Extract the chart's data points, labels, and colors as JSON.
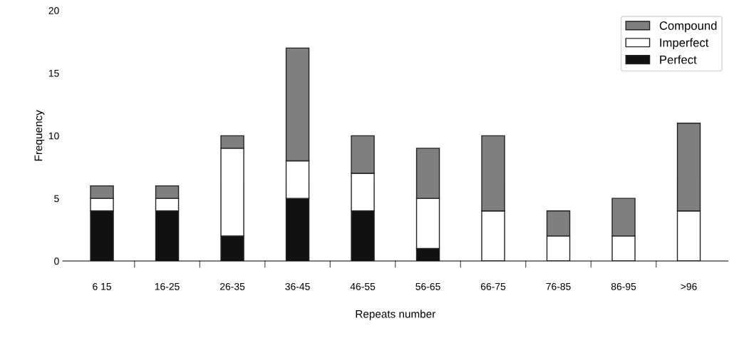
{
  "chart_data": {
    "type": "bar",
    "stacked": true,
    "xlabel": "Repeats number",
    "ylabel": "Frequency",
    "categories": [
      "6 15",
      "16-25",
      "26-35",
      "36-45",
      "46-55",
      "56-65",
      "66-75",
      "76-85",
      "86-95",
      ">96"
    ],
    "series": [
      {
        "name": "Perfect",
        "color": "#111111",
        "values": [
          4,
          4,
          2,
          5,
          4,
          1,
          0,
          0,
          0,
          0
        ]
      },
      {
        "name": "Imperfect",
        "color": "#ffffff",
        "values": [
          1,
          1,
          7,
          3,
          3,
          4,
          4,
          2,
          2,
          4
        ]
      },
      {
        "name": "Compound",
        "color": "#7f7f7f",
        "values": [
          1,
          1,
          1,
          9,
          3,
          4,
          6,
          2,
          3,
          7
        ]
      }
    ],
    "ylim": [
      0,
      20
    ],
    "yticks": [
      0,
      5,
      10,
      15,
      20
    ],
    "legend": "top right",
    "grid": false
  }
}
